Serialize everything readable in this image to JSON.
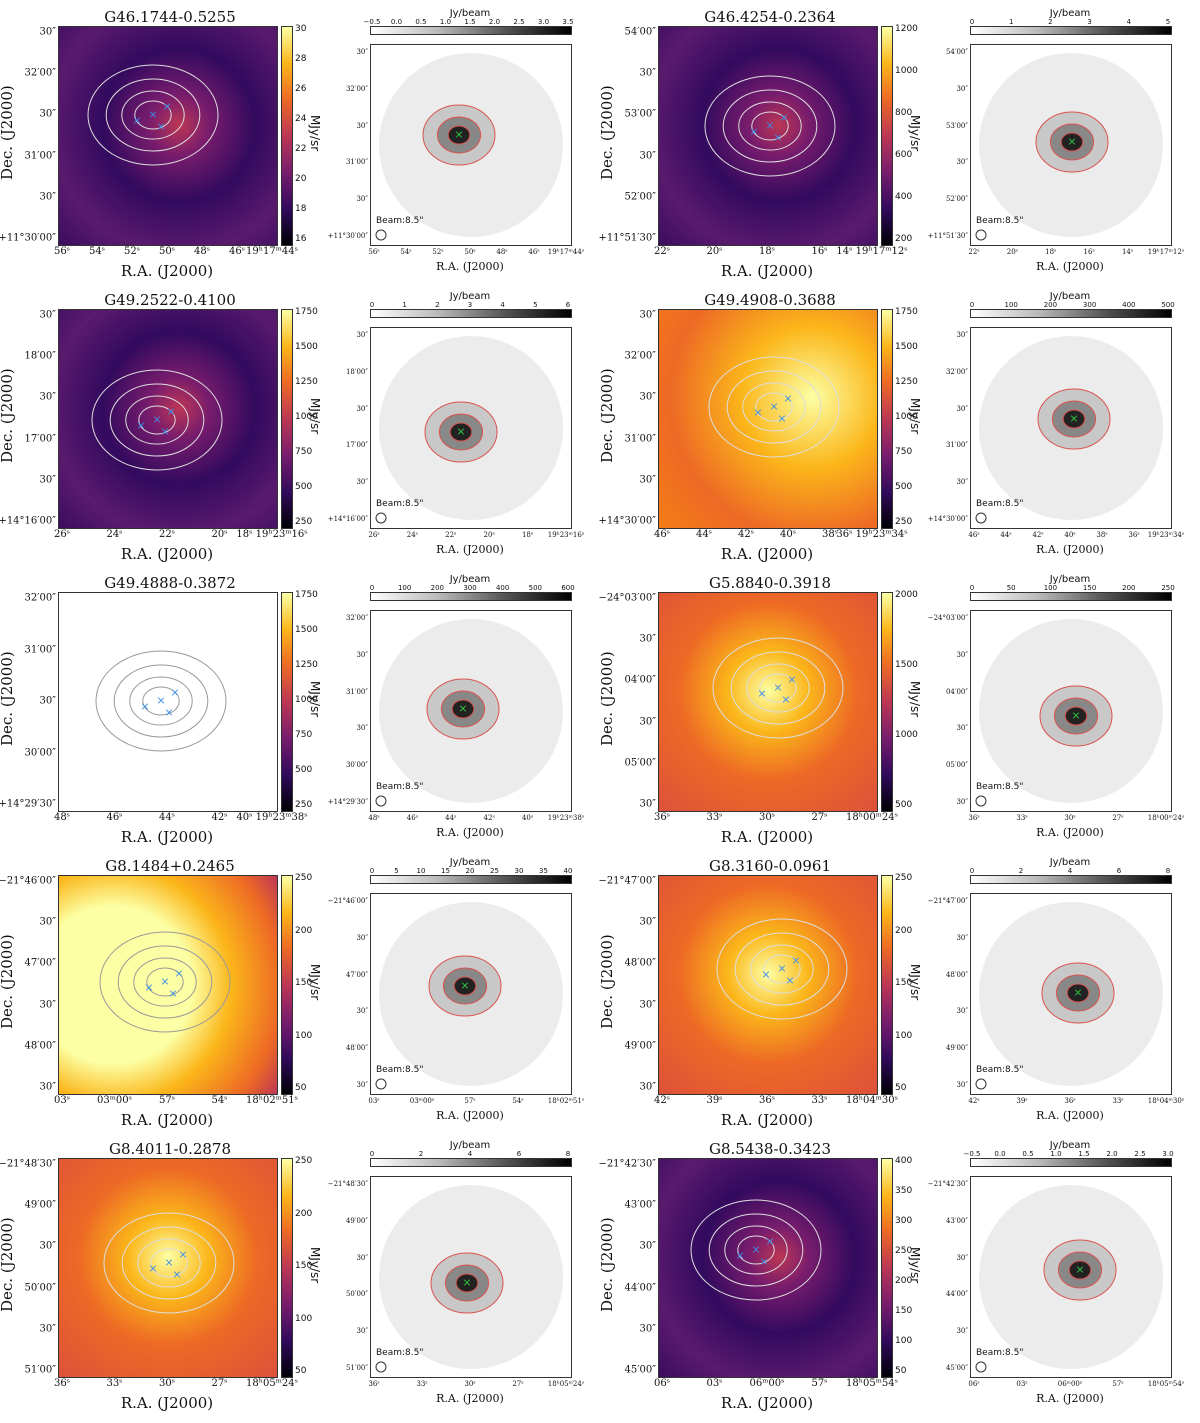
{
  "common": {
    "dec_label": "Dec. (J2000)",
    "ra_label": "R.A. (J2000)",
    "cbar_unit": "MJy/sr",
    "gray_unit": "Jy/beam",
    "beam_label": "Beam:8.5\""
  },
  "panels": [
    {
      "title": "G46.1744-0.5255",
      "style": "dark",
      "cbar_ticks": [
        "30",
        "28",
        "26",
        "24",
        "22",
        "20",
        "18",
        "16"
      ],
      "x_ticks": [
        "56ˢ",
        "54ˢ",
        "52ˢ",
        "50ˢ",
        "48ˢ",
        "46ˢ",
        "19ʰ17ᵐ44ˢ"
      ],
      "y_ticks": [
        "30″",
        "32′00″",
        "30″",
        "31′00″",
        "30″",
        "+11°30′00″"
      ],
      "gray_ticks": [
        "−0.5",
        "0.0",
        "0.5",
        "1.0",
        "1.5",
        "2.0",
        "2.5",
        "3.0",
        "3.5"
      ],
      "gray_x_ticks": [
        "56ˢ",
        "54ˢ",
        "52ˢ",
        "50ˢ",
        "48ˢ",
        "46ˢ",
        "19ʰ17ᵐ44ˢ"
      ],
      "gray_y_ticks": [
        "30″",
        "32′00″",
        "30″",
        "31′00″",
        "30″",
        "+11°30′00″"
      ]
    },
    {
      "title": "G46.4254-0.2364",
      "style": "dark",
      "cbar_ticks": [
        "1200",
        "1000",
        "800",
        "600",
        "400",
        "200"
      ],
      "x_ticks": [
        "22ˢ",
        "20ˢ",
        "18ˢ",
        "16ˢ",
        "14ˢ 19ʰ17ᵐ12ˢ"
      ],
      "y_ticks": [
        "54′00″",
        "30″",
        "53′00″",
        "30″",
        "52′00″",
        "+11°51′30″"
      ],
      "gray_ticks": [
        "0",
        "1",
        "2",
        "3",
        "4",
        "5"
      ],
      "gray_x_ticks": [
        "22ˢ",
        "20ˢ",
        "18ˢ",
        "16ˢ",
        "14ˢ",
        "19ʰ17ᵐ12ˢ"
      ],
      "gray_y_ticks": [
        "54′00″",
        "30″",
        "53′00″",
        "30″",
        "52′00″",
        "+11°51′30″"
      ]
    },
    {
      "title": "G49.2522-0.4100",
      "style": "dark",
      "cbar_ticks": [
        "1750",
        "1500",
        "1250",
        "1000",
        "750",
        "500",
        "250"
      ],
      "x_ticks": [
        "26ˢ",
        "24ˢ",
        "22ˢ",
        "20ˢ",
        "18ˢ 19ʰ23ᵐ16ˢ"
      ],
      "y_ticks": [
        "30″",
        "18′00″",
        "30″",
        "17′00″",
        "30″",
        "+14°16′00″"
      ],
      "gray_ticks": [
        "0",
        "1",
        "2",
        "3",
        "4",
        "5",
        "6"
      ],
      "gray_x_ticks": [
        "26ˢ",
        "24ˢ",
        "22ˢ",
        "20ˢ",
        "18ˢ",
        "19ʰ23ᵐ16ˢ"
      ],
      "gray_y_ticks": [
        "30″",
        "18′00″",
        "30″",
        "17′00″",
        "30″",
        "+14°16′00″"
      ]
    },
    {
      "title": "G49.4908-0.3688",
      "style": "bright",
      "cbar_ticks": [
        "1750",
        "1500",
        "1250",
        "1000",
        "750",
        "500",
        "250"
      ],
      "x_ticks": [
        "46ˢ",
        "44ˢ",
        "42ˢ",
        "40ˢ",
        "38ˢ",
        "36ˢ 19ʰ23ᵐ34ˢ"
      ],
      "y_ticks": [
        "30″",
        "32′00″",
        "30″",
        "31′00″",
        "30″",
        "+14°30′00″"
      ],
      "gray_ticks": [
        "0",
        "100",
        "200",
        "300",
        "400",
        "500"
      ],
      "gray_x_ticks": [
        "46ˢ",
        "44ˢ",
        "42ˢ",
        "40ˢ",
        "38ˢ",
        "36ˢ",
        "19ʰ23ᵐ34ˢ"
      ],
      "gray_y_ticks": [
        "30″",
        "32′00″",
        "30″",
        "31′00″",
        "30″",
        "+14°30′00″"
      ]
    },
    {
      "title": "G49.4888-0.3872",
      "style": "white",
      "cbar_ticks": [
        "1750",
        "1500",
        "1250",
        "1000",
        "750",
        "500",
        "250"
      ],
      "x_ticks": [
        "48ˢ",
        "46ˢ",
        "44ˢ",
        "42ˢ",
        "40ˢ 19ʰ23ᵐ38ˢ"
      ],
      "y_ticks": [
        "32′00″",
        "31′00″",
        "30″",
        "30′00″",
        "+14°29′30″"
      ],
      "gray_ticks": [
        "0",
        "100",
        "200",
        "300",
        "400",
        "500",
        "600"
      ],
      "gray_x_ticks": [
        "48ˢ",
        "46ˢ",
        "44ˢ",
        "42ˢ",
        "40ˢ",
        "19ʰ23ᵐ38ˢ"
      ],
      "gray_y_ticks": [
        "32′00″",
        "30″",
        "31′00″",
        "30″",
        "30′00″",
        "+14°29′30″"
      ]
    },
    {
      "title": "G5.8840-0.3918",
      "style": "orange",
      "cbar_ticks": [
        "2000",
        "1500",
        "1000",
        "500"
      ],
      "x_ticks": [
        "36ˢ",
        "33ˢ",
        "30ˢ",
        "27ˢ",
        "18ʰ00ᵐ24ˢ"
      ],
      "y_ticks": [
        "−24°03′00″",
        "30″",
        "04′00″",
        "30″",
        "05′00″",
        "30″"
      ],
      "gray_ticks": [
        "0",
        "50",
        "100",
        "150",
        "200",
        "250"
      ],
      "gray_x_ticks": [
        "36ˢ",
        "33ˢ",
        "30ˢ",
        "27ˢ",
        "18ʰ00ᵐ24ˢ"
      ],
      "gray_y_ticks": [
        "−24°03′00″",
        "30″",
        "04′00″",
        "30″",
        "05′00″",
        "30″"
      ]
    },
    {
      "title": "G8.1484+0.2465",
      "style": "yellow",
      "cbar_ticks": [
        "250",
        "200",
        "150",
        "100",
        "50"
      ],
      "x_ticks": [
        "03ˢ",
        "03ᵐ00ˢ",
        "57ˢ",
        "54ˢ",
        "18ʰ02ᵐ51ˢ"
      ],
      "y_ticks": [
        "−21°46′00″",
        "30″",
        "47′00″",
        "30″",
        "48′00″",
        "30″"
      ],
      "gray_ticks": [
        "0",
        "5",
        "10",
        "15",
        "20",
        "25",
        "30",
        "35",
        "40"
      ],
      "gray_x_ticks": [
        "03ˢ",
        "03ᵐ00ˢ",
        "57ˢ",
        "54ˢ",
        "18ʰ02ᵐ51ˢ"
      ],
      "gray_y_ticks": [
        "−21°46′00″",
        "30″",
        "47′00″",
        "30″",
        "48′00″",
        "30″"
      ]
    },
    {
      "title": "G8.3160-0.0961",
      "style": "orange",
      "cbar_ticks": [
        "250",
        "200",
        "150",
        "100",
        "50"
      ],
      "x_ticks": [
        "42ˢ",
        "39ˢ",
        "36ˢ",
        "33ˢ",
        "18ʰ04ᵐ30ˢ"
      ],
      "y_ticks": [
        "−21°47′00″",
        "30″",
        "48′00″",
        "30″",
        "49′00″",
        "30″"
      ],
      "gray_ticks": [
        "0",
        "2",
        "4",
        "6",
        "8"
      ],
      "gray_x_ticks": [
        "42ˢ",
        "39ˢ",
        "36ˢ",
        "33ˢ",
        "18ʰ04ᵐ30ˢ"
      ],
      "gray_y_ticks": [
        "−21°47′00″",
        "30″",
        "48′00″",
        "30″",
        "49′00″",
        "30″"
      ]
    },
    {
      "title": "G8.4011-0.2878",
      "style": "orange",
      "cbar_ticks": [
        "250",
        "200",
        "150",
        "100",
        "50"
      ],
      "x_ticks": [
        "36ˢ",
        "33ˢ",
        "30ˢ",
        "27ˢ",
        "18ʰ05ᵐ24ˢ"
      ],
      "y_ticks": [
        "−21°48′30″",
        "49′00″",
        "30″",
        "50′00″",
        "30″",
        "51′00″"
      ],
      "gray_ticks": [
        "0",
        "2",
        "4",
        "6",
        "8"
      ],
      "gray_x_ticks": [
        "36ˢ",
        "33ˢ",
        "30ˢ",
        "27ˢ",
        "18ʰ05ᵐ24ˢ"
      ],
      "gray_y_ticks": [
        "−21°48′30″",
        "49′00″",
        "30″",
        "50′00″",
        "30″",
        "51′00″"
      ]
    },
    {
      "title": "G8.5438-0.3423",
      "style": "dark",
      "cbar_ticks": [
        "400",
        "350",
        "300",
        "250",
        "200",
        "150",
        "100",
        "50"
      ],
      "x_ticks": [
        "06ˢ",
        "03ˢ",
        "06ᵐ00ˢ",
        "57ˢ",
        "18ʰ05ᵐ54ˢ"
      ],
      "y_ticks": [
        "−21°42′30″",
        "43′00″",
        "30″",
        "44′00″",
        "30″",
        "45′00″"
      ],
      "gray_ticks": [
        "−0.5",
        "0.0",
        "0.5",
        "1.0",
        "1.5",
        "2.0",
        "2.5",
        "3.0"
      ],
      "gray_x_ticks": [
        "06ˢ",
        "03ˢ",
        "06ᵐ00ˢ",
        "57ˢ",
        "18ʰ05ᵐ54ˢ"
      ],
      "gray_y_ticks": [
        "−21°42′30″",
        "43′00″",
        "30″",
        "44′00″",
        "30″",
        "45′00″"
      ]
    }
  ]
}
